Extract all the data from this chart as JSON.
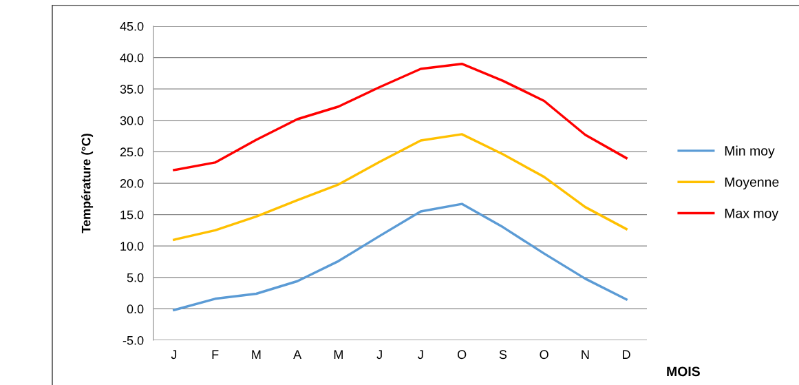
{
  "chart_data": {
    "type": "line",
    "xlabel": "MOIS",
    "ylabel": "Température (°C)",
    "categories": [
      "J",
      "F",
      "M",
      "A",
      "M",
      "J",
      "J",
      "O",
      "S",
      "O",
      "N",
      "D"
    ],
    "series": [
      {
        "name": "Min moy",
        "color": "#5b9bd5",
        "values": [
          -0.2,
          1.6,
          2.4,
          4.4,
          7.6,
          11.6,
          15.5,
          16.7,
          13.0,
          8.8,
          4.8,
          1.5
        ]
      },
      {
        "name": "Moyenne",
        "color": "#ffc000",
        "values": [
          11.0,
          12.5,
          14.7,
          17.3,
          19.8,
          23.4,
          26.8,
          27.8,
          24.6,
          21.0,
          16.2,
          12.7
        ]
      },
      {
        "name": "Max moy",
        "color": "#ff0000",
        "values": [
          22.1,
          23.3,
          26.9,
          30.2,
          32.2,
          35.3,
          38.2,
          39.0,
          36.3,
          33.1,
          27.7,
          24.0
        ]
      }
    ],
    "ylim": [
      -5,
      45
    ],
    "yticks": [
      {
        "value": -5,
        "label": "-5.0"
      },
      {
        "value": 0,
        "label": "0.0"
      },
      {
        "value": 5,
        "label": "5.0"
      },
      {
        "value": 10,
        "label": "10.0"
      },
      {
        "value": 15,
        "label": "15.0"
      },
      {
        "value": 20,
        "label": "20.0"
      },
      {
        "value": 25,
        "label": "25.0"
      },
      {
        "value": 30,
        "label": "30.0"
      },
      {
        "value": 35,
        "label": "35.0"
      },
      {
        "value": 40,
        "label": "40.0"
      },
      {
        "value": 45,
        "label": "45.0"
      }
    ],
    "grid": "y",
    "legend": "right",
    "marker": "none",
    "line_style": "solid"
  }
}
